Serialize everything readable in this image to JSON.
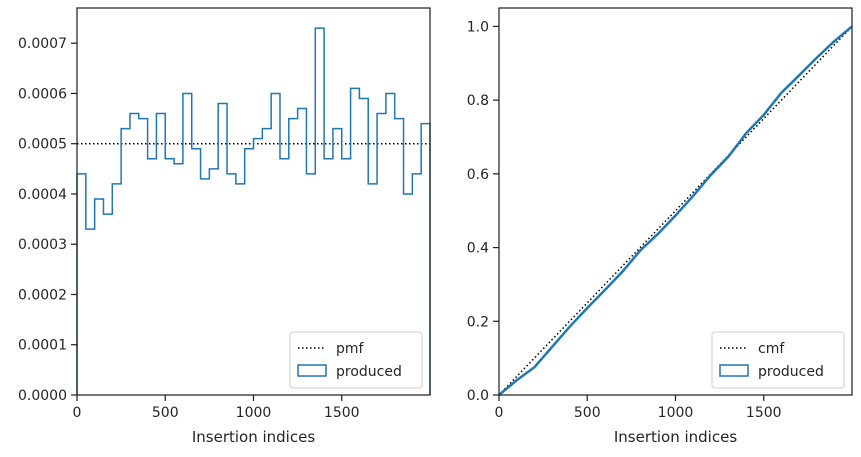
{
  "chart_data": [
    {
      "type": "line",
      "xlabel": "Insertion indices",
      "ylabel": "",
      "xlim": [
        0,
        2000
      ],
      "ylim": [
        0,
        0.00077
      ],
      "xticks": [
        0,
        500,
        1000,
        1500
      ],
      "xtick_labels": [
        "0",
        "500",
        "1000",
        "1500"
      ],
      "yticks": [
        0,
        0.0001,
        0.0002,
        0.0003,
        0.0004,
        0.0005,
        0.0006,
        0.0007
      ],
      "ytick_labels": [
        "0.0000",
        "0.0001",
        "0.0002",
        "0.0003",
        "0.0004",
        "0.0005",
        "0.0006",
        "0.0007"
      ],
      "legend_position": "bottom-right",
      "series": [
        {
          "name": "pmf",
          "style": "dotted",
          "color": "#000000",
          "x": [
            0,
            2000
          ],
          "values": [
            0.0005,
            0.0005
          ]
        },
        {
          "name": "produced",
          "style": "step",
          "color": "#1f77b4",
          "bin_width": 50,
          "bin_starts": [
            0,
            50,
            100,
            150,
            200,
            250,
            300,
            350,
            400,
            450,
            500,
            550,
            600,
            650,
            700,
            750,
            800,
            850,
            900,
            950,
            1000,
            1050,
            1100,
            1150,
            1200,
            1250,
            1300,
            1350,
            1400,
            1450,
            1500,
            1550,
            1600,
            1650,
            1700,
            1750,
            1800,
            1850,
            1900,
            1950
          ],
          "values": [
            0.00044,
            0.00033,
            0.00039,
            0.00036,
            0.00042,
            0.00053,
            0.00056,
            0.00055,
            0.00047,
            0.00056,
            0.00047,
            0.00046,
            0.0006,
            0.00049,
            0.00043,
            0.00045,
            0.00058,
            0.00044,
            0.00042,
            0.00049,
            0.00051,
            0.00053,
            0.0006,
            0.00047,
            0.00055,
            0.00057,
            0.00044,
            0.00073,
            0.00047,
            0.00053,
            0.00047,
            0.00061,
            0.00059,
            0.00042,
            0.00056,
            0.0006,
            0.00055,
            0.0004,
            0.00044,
            0.00054
          ]
        }
      ]
    },
    {
      "type": "line",
      "xlabel": "Insertion indices",
      "ylabel": "",
      "xlim": [
        0,
        2000
      ],
      "ylim": [
        0,
        1.05
      ],
      "xticks": [
        0,
        500,
        1000,
        1500
      ],
      "xtick_labels": [
        "0",
        "500",
        "1000",
        "1500"
      ],
      "yticks": [
        0,
        0.2,
        0.4,
        0.6,
        0.8,
        1.0
      ],
      "ytick_labels": [
        "0.0",
        "0.2",
        "0.4",
        "0.6",
        "0.8",
        "1.0"
      ],
      "legend_position": "bottom-right",
      "series": [
        {
          "name": "cmf",
          "style": "dotted",
          "color": "#000000",
          "x": [
            0,
            2000
          ],
          "values": [
            0,
            1.0
          ]
        },
        {
          "name": "produced",
          "style": "line",
          "color": "#1f77b4",
          "x": [
            0,
            100,
            200,
            300,
            400,
            500,
            600,
            700,
            800,
            900,
            1000,
            1100,
            1200,
            1300,
            1400,
            1500,
            1600,
            1700,
            1800,
            1900,
            2000
          ],
          "values": [
            0,
            0.04,
            0.075,
            0.13,
            0.185,
            0.236,
            0.285,
            0.335,
            0.392,
            0.437,
            0.487,
            0.54,
            0.597,
            0.647,
            0.71,
            0.76,
            0.82,
            0.867,
            0.915,
            0.96,
            1.0
          ]
        }
      ]
    }
  ]
}
